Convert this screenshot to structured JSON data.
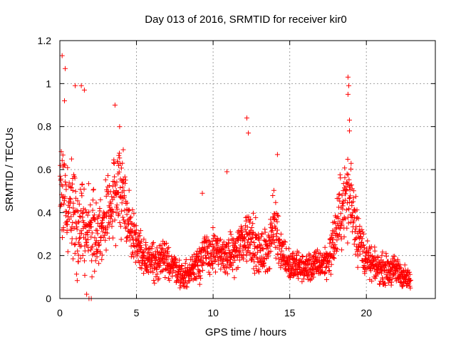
{
  "chart_data": {
    "type": "scatter",
    "title": "Day 013 of 2016, SRMTID for receiver kir0",
    "xlabel": "GPS time / hours",
    "ylabel": "SRMTID / TECUs",
    "xlim": [
      0,
      24.5
    ],
    "ylim": [
      0,
      1.2
    ],
    "grid": true,
    "marker": "+",
    "color": "#ff0000",
    "x_ticks": [
      0,
      5,
      10,
      15,
      20
    ],
    "x_tick_labels": [
      "0",
      "5",
      "10",
      "15",
      "20"
    ],
    "y_ticks": [
      0,
      0.2,
      0.4,
      0.6,
      0.8,
      1.0,
      1.2
    ],
    "y_tick_labels": [
      "0",
      "0.2",
      "0.4",
      "0.6",
      "0.8",
      "1",
      "1.2"
    ],
    "series": [
      {
        "name": "SRMTID",
        "envelope_x": [
          0.0,
          0.5,
          1.0,
          1.5,
          2.0,
          2.5,
          3.0,
          3.5,
          4.0,
          4.5,
          5.0,
          5.5,
          6.0,
          6.5,
          7.0,
          7.5,
          8.0,
          8.5,
          9.0,
          9.5,
          10.0,
          10.5,
          11.0,
          11.5,
          12.0,
          12.5,
          13.0,
          13.5,
          14.0,
          14.5,
          15.0,
          15.5,
          16.0,
          16.5,
          17.0,
          17.5,
          18.0,
          18.5,
          19.0,
          19.5,
          20.0,
          20.5,
          21.0,
          21.5,
          22.0,
          22.5,
          22.9
        ],
        "envelope_y": [
          0.55,
          0.45,
          0.38,
          0.34,
          0.32,
          0.3,
          0.35,
          0.45,
          0.55,
          0.35,
          0.25,
          0.2,
          0.18,
          0.18,
          0.17,
          0.15,
          0.1,
          0.12,
          0.18,
          0.2,
          0.22,
          0.2,
          0.2,
          0.22,
          0.28,
          0.3,
          0.2,
          0.22,
          0.35,
          0.22,
          0.15,
          0.15,
          0.14,
          0.15,
          0.16,
          0.18,
          0.3,
          0.45,
          0.48,
          0.28,
          0.18,
          0.15,
          0.14,
          0.13,
          0.13,
          0.1,
          0.08
        ],
        "spread_y": [
          0.22,
          0.2,
          0.18,
          0.16,
          0.15,
          0.12,
          0.14,
          0.16,
          0.18,
          0.1,
          0.08,
          0.06,
          0.06,
          0.06,
          0.06,
          0.05,
          0.04,
          0.05,
          0.07,
          0.08,
          0.07,
          0.06,
          0.06,
          0.07,
          0.1,
          0.1,
          0.07,
          0.08,
          0.12,
          0.07,
          0.05,
          0.05,
          0.05,
          0.05,
          0.05,
          0.06,
          0.1,
          0.14,
          0.15,
          0.1,
          0.06,
          0.05,
          0.05,
          0.05,
          0.05,
          0.04,
          0.03
        ],
        "peaks": [
          {
            "x": 0.15,
            "y": 1.13
          },
          {
            "x": 0.35,
            "y": 1.07
          },
          {
            "x": 0.3,
            "y": 0.92
          },
          {
            "x": 1.4,
            "y": 0.99
          },
          {
            "x": 1.6,
            "y": 0.97
          },
          {
            "x": 1.0,
            "y": 0.99
          },
          {
            "x": 3.6,
            "y": 0.9
          },
          {
            "x": 3.9,
            "y": 0.8
          },
          {
            "x": 9.3,
            "y": 0.49
          },
          {
            "x": 10.9,
            "y": 0.59
          },
          {
            "x": 12.2,
            "y": 0.84
          },
          {
            "x": 12.3,
            "y": 0.77
          },
          {
            "x": 14.2,
            "y": 0.67
          },
          {
            "x": 18.8,
            "y": 1.03
          },
          {
            "x": 18.85,
            "y": 0.99
          },
          {
            "x": 18.8,
            "y": 0.95
          },
          {
            "x": 18.9,
            "y": 0.83
          },
          {
            "x": 18.9,
            "y": 0.78
          },
          {
            "x": 1.9,
            "y": 0.0
          },
          {
            "x": 2.05,
            "y": 0.0
          },
          {
            "x": 1.75,
            "y": 0.02
          }
        ]
      }
    ]
  }
}
